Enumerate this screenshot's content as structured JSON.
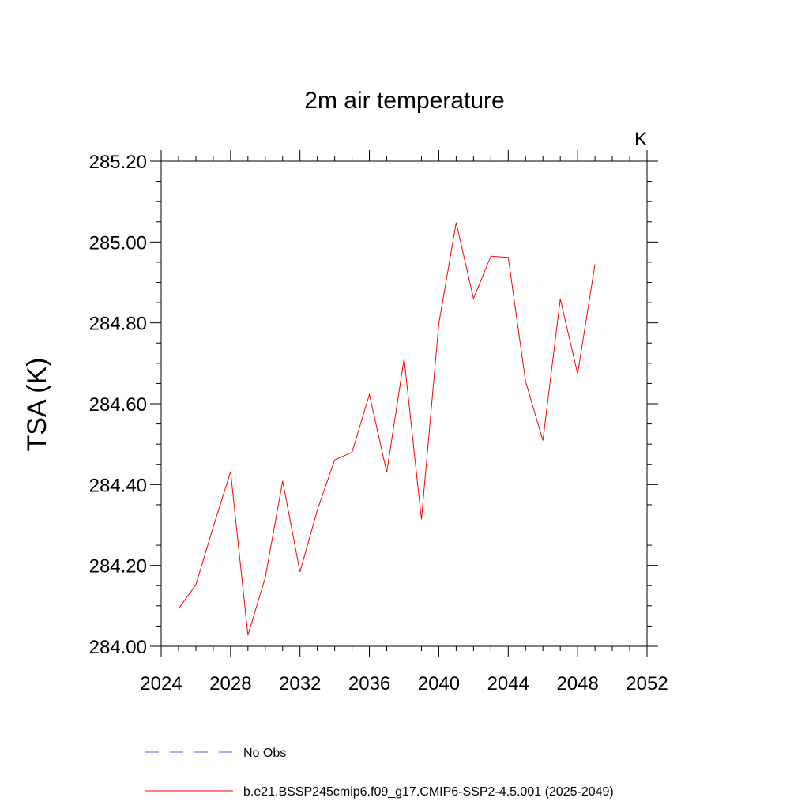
{
  "chart_data": {
    "type": "line",
    "title": "2m air temperature",
    "ylabel": "TSA  (K)",
    "units_label": "K",
    "xlabel": "",
    "xlim": [
      2024,
      2052
    ],
    "ylim": [
      284.0,
      285.2
    ],
    "x_ticks": [
      2024,
      2028,
      2032,
      2036,
      2040,
      2044,
      2048,
      2052
    ],
    "x_tick_labels": [
      "2024",
      "2028",
      "2032",
      "2036",
      "2040",
      "2044",
      "2048",
      "2052"
    ],
    "y_ticks": [
      284.0,
      284.2,
      284.4,
      284.6,
      284.8,
      285.0,
      285.2
    ],
    "y_tick_labels": [
      "284.00",
      "284.20",
      "284.40",
      "284.60",
      "284.80",
      "285.00",
      "285.20"
    ],
    "legend_position": "bottom",
    "series": [
      {
        "name": "No Obs",
        "color": "#6a5acd",
        "style": "dashed",
        "x": [],
        "y": []
      },
      {
        "name": "b.e21.BSSP245cmip6.f09_g17.CMIP6-SSP2-4.5.001 (2025-2049)",
        "color": "#ff0000",
        "style": "solid",
        "x": [
          2025,
          2026,
          2027,
          2028,
          2029,
          2030,
          2031,
          2032,
          2033,
          2034,
          2035,
          2036,
          2037,
          2038,
          2039,
          2040,
          2041,
          2042,
          2043,
          2044,
          2045,
          2046,
          2047,
          2048,
          2049
        ],
        "y": [
          284.093,
          284.152,
          284.295,
          284.432,
          284.027,
          284.17,
          284.409,
          284.184,
          284.337,
          284.461,
          284.48,
          284.623,
          284.43,
          284.712,
          284.314,
          284.798,
          285.048,
          284.86,
          284.965,
          284.962,
          284.655,
          284.509,
          284.859,
          284.674,
          284.945
        ]
      }
    ]
  }
}
